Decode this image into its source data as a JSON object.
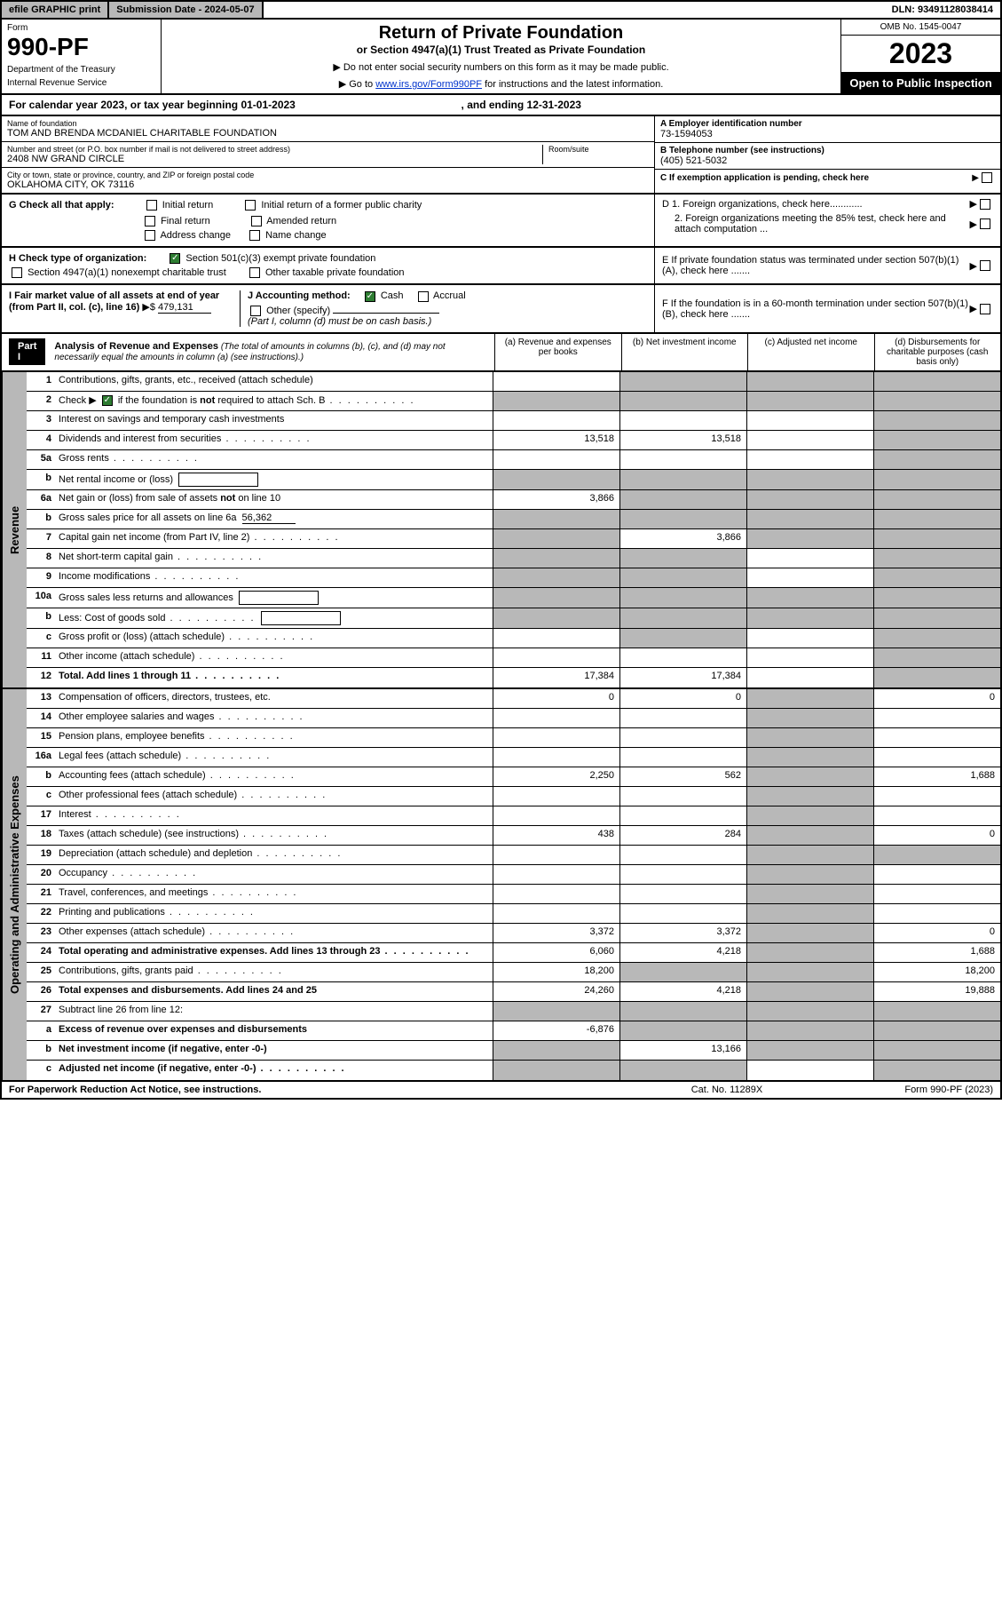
{
  "topbar": {
    "efile": "efile GRAPHIC print",
    "subdate_label": "Submission Date - 2024-05-07",
    "dln": "DLN: 93491128038414"
  },
  "header": {
    "form_label": "Form",
    "form_number": "990-PF",
    "dept1": "Department of the Treasury",
    "dept2": "Internal Revenue Service",
    "title": "Return of Private Foundation",
    "subtitle": "or Section 4947(a)(1) Trust Treated as Private Foundation",
    "note1": "▶ Do not enter social security numbers on this form as it may be made public.",
    "note2_pre": "▶ Go to ",
    "note2_link": "www.irs.gov/Form990PF",
    "note2_post": " for instructions and the latest information.",
    "omb": "OMB No. 1545-0047",
    "year": "2023",
    "open_public": "Open to Public Inspection"
  },
  "cal_year": {
    "pre": "For calendar year 2023, or tax year beginning ",
    "begin": "01-01-2023",
    "mid": " , and ending ",
    "end": "12-31-2023"
  },
  "entity": {
    "name_label": "Name of foundation",
    "name": "TOM AND BRENDA MCDANIEL CHARITABLE FOUNDATION",
    "addr_label": "Number and street (or P.O. box number if mail is not delivered to street address)",
    "addr": "2408 NW GRAND CIRCLE",
    "room_label": "Room/suite",
    "city_label": "City or town, state or province, country, and ZIP or foreign postal code",
    "city": "OKLAHOMA CITY, OK  73116",
    "ein_label": "A Employer identification number",
    "ein": "73-1594053",
    "phone_label": "B Telephone number (see instructions)",
    "phone": "(405) 521-5032",
    "c_label": "C If exemption application is pending, check here"
  },
  "checks": {
    "g_label": "G Check all that apply:",
    "g_initial": "Initial return",
    "g_initial_former": "Initial return of a former public charity",
    "g_final": "Final return",
    "g_amended": "Amended return",
    "g_address": "Address change",
    "g_name": "Name change",
    "h_label": "H Check type of organization:",
    "h_501c3": "Section 501(c)(3) exempt private foundation",
    "h_4947": "Section 4947(a)(1) nonexempt charitable trust",
    "h_other": "Other taxable private foundation",
    "i_label": "I Fair market value of all assets at end of year (from Part II, col. (c), line 16)",
    "i_value": "479,131",
    "j_label": "J Accounting method:",
    "j_cash": "Cash",
    "j_accrual": "Accrual",
    "j_other": "Other (specify)",
    "j_note": "(Part I, column (d) must be on cash basis.)",
    "d1": "D 1. Foreign organizations, check here............",
    "d2": "2. Foreign organizations meeting the 85% test, check here and attach computation ...",
    "e": "E  If private foundation status was terminated under section 507(b)(1)(A), check here .......",
    "f": "F  If the foundation is in a 60-month termination under section 507(b)(1)(B), check here .......",
    "arrow": "▶",
    "dollar": "▶$"
  },
  "part1": {
    "label": "Part I",
    "title": "Analysis of Revenue and Expenses",
    "desc": " (The total of amounts in columns (b), (c), and (d) may not necessarily equal the amounts in column (a) (see instructions).)",
    "col_a": "(a)   Revenue and expenses per books",
    "col_b": "(b)   Net investment income",
    "col_c": "(c)   Adjusted net income",
    "col_d": "(d)   Disbursements for charitable purposes (cash basis only)"
  },
  "side_labels": {
    "revenue": "Revenue",
    "expenses": "Operating and Administrative Expenses"
  },
  "rows": [
    {
      "n": "1",
      "d": "Contributions, gifts, grants, etc., received (attach schedule)",
      "a": "",
      "b": "g",
      "c": "g",
      "dd": "g"
    },
    {
      "n": "2",
      "d": "Check ▶ ☑ if the foundation is not required to attach Sch. B",
      "dots": true,
      "a": "g",
      "b": "g",
      "c": "g",
      "dd": "g"
    },
    {
      "n": "3",
      "d": "Interest on savings and temporary cash investments",
      "a": "",
      "b": "",
      "c": "",
      "dd": "g"
    },
    {
      "n": "4",
      "d": "Dividends and interest from securities",
      "dots": true,
      "a": "13,518",
      "b": "13,518",
      "c": "",
      "dd": "g"
    },
    {
      "n": "5a",
      "d": "Gross rents",
      "dots": true,
      "a": "",
      "b": "",
      "c": "",
      "dd": "g"
    },
    {
      "n": "b",
      "d": "Net rental income or (loss)",
      "box": true,
      "a": "g",
      "b": "g",
      "c": "g",
      "dd": "g"
    },
    {
      "n": "6a",
      "d": "Net gain or (loss) from sale of assets not on line 10",
      "a": "3,866",
      "b": "g",
      "c": "g",
      "dd": "g"
    },
    {
      "n": "b",
      "d": "Gross sales price for all assets on line 6a",
      "boxval": "56,362",
      "a": "g",
      "b": "g",
      "c": "g",
      "dd": "g"
    },
    {
      "n": "7",
      "d": "Capital gain net income (from Part IV, line 2)",
      "dots": true,
      "a": "g",
      "b": "3,866",
      "c": "g",
      "dd": "g"
    },
    {
      "n": "8",
      "d": "Net short-term capital gain",
      "dots": true,
      "a": "g",
      "b": "g",
      "c": "",
      "dd": "g"
    },
    {
      "n": "9",
      "d": "Income modifications",
      "dots": true,
      "a": "g",
      "b": "g",
      "c": "",
      "dd": "g"
    },
    {
      "n": "10a",
      "d": "Gross sales less returns and allowances",
      "box": true,
      "a": "g",
      "b": "g",
      "c": "g",
      "dd": "g"
    },
    {
      "n": "b",
      "d": "Less: Cost of goods sold",
      "dots": true,
      "box": true,
      "a": "g",
      "b": "g",
      "c": "g",
      "dd": "g"
    },
    {
      "n": "c",
      "d": "Gross profit or (loss) (attach schedule)",
      "dots": true,
      "a": "",
      "b": "g",
      "c": "",
      "dd": "g"
    },
    {
      "n": "11",
      "d": "Other income (attach schedule)",
      "dots": true,
      "a": "",
      "b": "",
      "c": "",
      "dd": "g"
    },
    {
      "n": "12",
      "d": "Total. Add lines 1 through 11",
      "bold": true,
      "dots": true,
      "a": "17,384",
      "b": "17,384",
      "c": "",
      "dd": "g"
    }
  ],
  "exp_rows": [
    {
      "n": "13",
      "d": "Compensation of officers, directors, trustees, etc.",
      "a": "0",
      "b": "0",
      "c": "g",
      "dd": "0"
    },
    {
      "n": "14",
      "d": "Other employee salaries and wages",
      "dots": true,
      "a": "",
      "b": "",
      "c": "g",
      "dd": ""
    },
    {
      "n": "15",
      "d": "Pension plans, employee benefits",
      "dots": true,
      "a": "",
      "b": "",
      "c": "g",
      "dd": ""
    },
    {
      "n": "16a",
      "d": "Legal fees (attach schedule)",
      "dots": true,
      "a": "",
      "b": "",
      "c": "g",
      "dd": ""
    },
    {
      "n": "b",
      "d": "Accounting fees (attach schedule)",
      "dots": true,
      "a": "2,250",
      "b": "562",
      "c": "g",
      "dd": "1,688"
    },
    {
      "n": "c",
      "d": "Other professional fees (attach schedule)",
      "dots": true,
      "a": "",
      "b": "",
      "c": "g",
      "dd": ""
    },
    {
      "n": "17",
      "d": "Interest",
      "dots": true,
      "a": "",
      "b": "",
      "c": "g",
      "dd": ""
    },
    {
      "n": "18",
      "d": "Taxes (attach schedule) (see instructions)",
      "dots": true,
      "a": "438",
      "b": "284",
      "c": "g",
      "dd": "0"
    },
    {
      "n": "19",
      "d": "Depreciation (attach schedule) and depletion",
      "dots": true,
      "a": "",
      "b": "",
      "c": "g",
      "dd": "g"
    },
    {
      "n": "20",
      "d": "Occupancy",
      "dots": true,
      "a": "",
      "b": "",
      "c": "g",
      "dd": ""
    },
    {
      "n": "21",
      "d": "Travel, conferences, and meetings",
      "dots": true,
      "a": "",
      "b": "",
      "c": "g",
      "dd": ""
    },
    {
      "n": "22",
      "d": "Printing and publications",
      "dots": true,
      "a": "",
      "b": "",
      "c": "g",
      "dd": ""
    },
    {
      "n": "23",
      "d": "Other expenses (attach schedule)",
      "dots": true,
      "a": "3,372",
      "b": "3,372",
      "c": "g",
      "dd": "0"
    },
    {
      "n": "24",
      "d": "Total operating and administrative expenses. Add lines 13 through 23",
      "bold": true,
      "dots": true,
      "a": "6,060",
      "b": "4,218",
      "c": "g",
      "dd": "1,688"
    },
    {
      "n": "25",
      "d": "Contributions, gifts, grants paid",
      "dots": true,
      "a": "18,200",
      "b": "g",
      "c": "g",
      "dd": "18,200"
    },
    {
      "n": "26",
      "d": "Total expenses and disbursements. Add lines 24 and 25",
      "bold": true,
      "a": "24,260",
      "b": "4,218",
      "c": "g",
      "dd": "19,888"
    },
    {
      "n": "27",
      "d": "Subtract line 26 from line 12:",
      "a": "g",
      "b": "g",
      "c": "g",
      "dd": "g"
    },
    {
      "n": "a",
      "d": "Excess of revenue over expenses and disbursements",
      "bold": true,
      "a": "-6,876",
      "b": "g",
      "c": "g",
      "dd": "g"
    },
    {
      "n": "b",
      "d": "Net investment income (if negative, enter -0-)",
      "bold": true,
      "a": "g",
      "b": "13,166",
      "c": "g",
      "dd": "g"
    },
    {
      "n": "c",
      "d": "Adjusted net income (if negative, enter -0-)",
      "bold": true,
      "dots": true,
      "a": "g",
      "b": "g",
      "c": "",
      "dd": "g"
    }
  ],
  "footer": {
    "left": "For Paperwork Reduction Act Notice, see instructions.",
    "mid": "Cat. No. 11289X",
    "right": "Form 990-PF (2023)"
  },
  "colors": {
    "grey": "#b8b8b8",
    "link": "#0033cc",
    "check": "#2e7d32"
  }
}
